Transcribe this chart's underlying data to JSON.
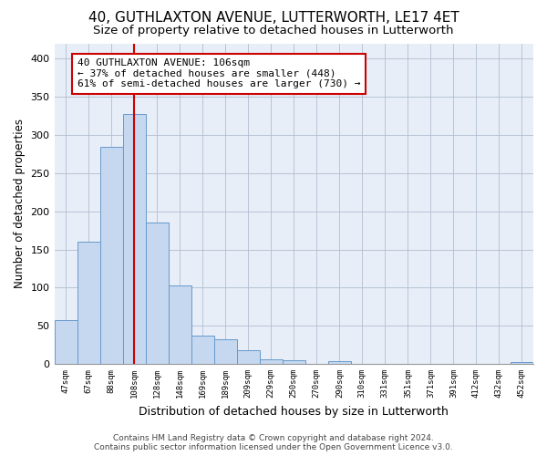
{
  "title": "40, GUTHLAXTON AVENUE, LUTTERWORTH, LE17 4ET",
  "subtitle": "Size of property relative to detached houses in Lutterworth",
  "xlabel": "Distribution of detached houses by size in Lutterworth",
  "ylabel": "Number of detached properties",
  "bin_labels": [
    "47sqm",
    "67sqm",
    "88sqm",
    "108sqm",
    "128sqm",
    "148sqm",
    "169sqm",
    "189sqm",
    "209sqm",
    "229sqm",
    "250sqm",
    "270sqm",
    "290sqm",
    "310sqm",
    "331sqm",
    "351sqm",
    "371sqm",
    "391sqm",
    "412sqm",
    "432sqm",
    "452sqm"
  ],
  "bar_heights": [
    57,
    160,
    284,
    328,
    185,
    103,
    37,
    32,
    18,
    6,
    5,
    0,
    4,
    0,
    0,
    0,
    0,
    0,
    0,
    0,
    3
  ],
  "bar_color": "#c5d8f0",
  "bar_edge_color": "#6699cc",
  "vline_x": 3,
  "vline_color": "#cc0000",
  "annotation_text": "40 GUTHLAXTON AVENUE: 106sqm\n← 37% of detached houses are smaller (448)\n61% of semi-detached houses are larger (730) →",
  "annotation_box_color": "#ffffff",
  "annotation_box_edge": "#cc0000",
  "ylim": [
    0,
    420
  ],
  "yticks": [
    0,
    50,
    100,
    150,
    200,
    250,
    300,
    350,
    400
  ],
  "footnote": "Contains HM Land Registry data © Crown copyright and database right 2024.\nContains public sector information licensed under the Open Government Licence v3.0.",
  "title_fontsize": 11,
  "subtitle_fontsize": 9.5,
  "xlabel_fontsize": 9,
  "ylabel_fontsize": 8.5,
  "annotation_fontsize": 8,
  "footnote_fontsize": 6.5,
  "bg_color": "#e8eef7"
}
